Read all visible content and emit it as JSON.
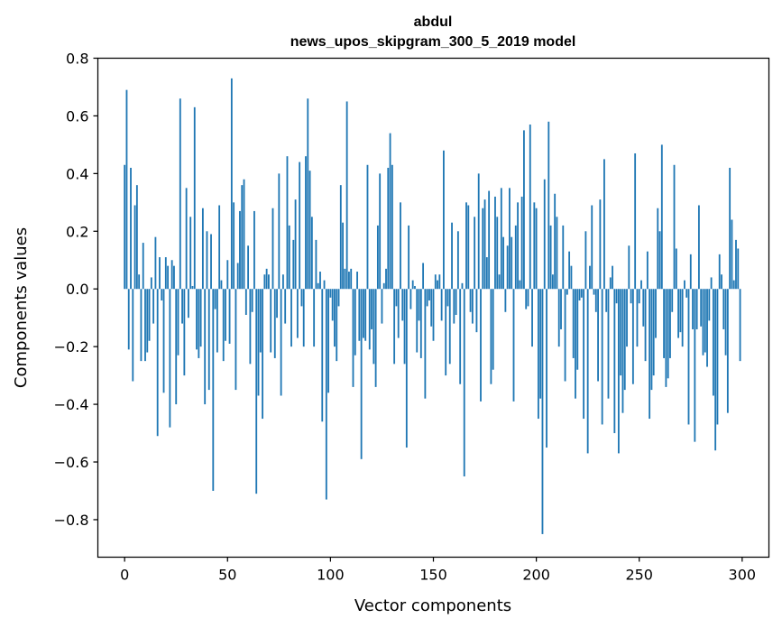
{
  "chart_data": {
    "type": "bar",
    "title_line1": "abdul",
    "title_line2": "news_upos_skipgram_300_5_2019 model",
    "xlabel": "Vector components",
    "ylabel": "Components values",
    "xlim": [
      -13,
      313
    ],
    "ylim": [
      -0.93,
      0.8
    ],
    "xticks": [
      0,
      50,
      100,
      150,
      200,
      250,
      300
    ],
    "xtick_labels": [
      "0",
      "50",
      "100",
      "150",
      "200",
      "250",
      "300"
    ],
    "yticks": [
      -0.8,
      -0.6,
      -0.4,
      -0.2,
      0.0,
      0.2,
      0.4,
      0.6,
      0.8
    ],
    "ytick_labels": [
      "−0.8",
      "−0.6",
      "−0.4",
      "−0.2",
      "0.0",
      "0.2",
      "0.4",
      "0.6",
      "0.8"
    ],
    "bar_color": "#1f77b4",
    "grid": false,
    "values": [
      0.43,
      0.69,
      -0.21,
      0.42,
      -0.32,
      0.29,
      0.36,
      0.05,
      -0.25,
      0.16,
      -0.25,
      -0.22,
      -0.18,
      0.04,
      -0.12,
      0.18,
      -0.51,
      0.11,
      -0.04,
      -0.36,
      0.11,
      0.08,
      -0.48,
      0.1,
      0.08,
      -0.4,
      -0.23,
      0.66,
      -0.12,
      -0.3,
      0.35,
      -0.1,
      0.25,
      0.01,
      0.63,
      -0.21,
      -0.24,
      -0.2,
      0.28,
      -0.4,
      0.2,
      -0.35,
      0.19,
      -0.7,
      -0.07,
      -0.22,
      0.29,
      0.03,
      -0.25,
      -0.18,
      0.1,
      -0.19,
      0.73,
      0.3,
      -0.35,
      0.09,
      0.27,
      0.36,
      0.38,
      -0.09,
      0.15,
      -0.26,
      -0.08,
      0.27,
      -0.71,
      -0.37,
      -0.22,
      -0.45,
      0.05,
      0.07,
      0.05,
      -0.22,
      0.28,
      -0.24,
      -0.1,
      0.4,
      -0.37,
      0.05,
      -0.12,
      0.46,
      0.22,
      -0.2,
      0.17,
      0.31,
      -0.17,
      0.44,
      -0.06,
      -0.2,
      0.46,
      0.66,
      0.41,
      0.25,
      -0.2,
      0.17,
      0.02,
      0.06,
      -0.46,
      0.03,
      -0.73,
      -0.36,
      -0.03,
      -0.11,
      -0.2,
      -0.25,
      -0.06,
      0.36,
      0.23,
      0.07,
      0.65,
      0.06,
      0.07,
      -0.34,
      -0.23,
      0.06,
      -0.18,
      -0.59,
      -0.17,
      -0.18,
      0.43,
      -0.21,
      -0.14,
      -0.26,
      -0.34,
      0.22,
      0.4,
      -0.12,
      0.02,
      0.07,
      0.42,
      0.54,
      0.43,
      -0.26,
      -0.06,
      -0.17,
      0.3,
      -0.11,
      -0.26,
      -0.55,
      0.22,
      -0.07,
      0.03,
      0.01,
      -0.22,
      -0.11,
      -0.24,
      0.09,
      -0.38,
      -0.06,
      -0.04,
      -0.13,
      -0.18,
      0.05,
      0.03,
      0.05,
      -0.11,
      0.48,
      -0.3,
      -0.06,
      -0.26,
      0.23,
      -0.12,
      -0.09,
      0.2,
      -0.33,
      0.02,
      -0.65,
      0.3,
      0.29,
      -0.08,
      -0.12,
      0.25,
      -0.15,
      0.4,
      -0.39,
      0.28,
      0.31,
      0.11,
      0.34,
      -0.33,
      -0.28,
      0.32,
      0.25,
      0.05,
      0.35,
      0.18,
      -0.08,
      0.15,
      0.35,
      0.18,
      -0.39,
      0.22,
      0.3,
      0.03,
      0.32,
      0.55,
      -0.07,
      -0.06,
      0.57,
      -0.2,
      0.3,
      0.28,
      -0.45,
      -0.38,
      -0.85,
      0.38,
      -0.55,
      0.58,
      0.22,
      0.05,
      0.33,
      0.25,
      -0.2,
      -0.14,
      0.22,
      -0.32,
      -0.02,
      0.13,
      0.08,
      -0.24,
      -0.38,
      -0.28,
      -0.04,
      -0.03,
      -0.45,
      0.2,
      -0.57,
      0.08,
      0.29,
      -0.02,
      -0.08,
      -0.32,
      0.31,
      -0.47,
      0.45,
      -0.08,
      -0.38,
      0.04,
      0.08,
      -0.5,
      -0.05,
      -0.57,
      -0.3,
      -0.43,
      -0.35,
      -0.2,
      0.15,
      -0.05,
      -0.33,
      0.47,
      -0.2,
      -0.05,
      0.03,
      -0.13,
      -0.25,
      0.13,
      -0.45,
      -0.35,
      -0.3,
      -0.17,
      0.28,
      0.2,
      0.5,
      -0.24,
      -0.34,
      -0.31,
      -0.24,
      -0.08,
      0.43,
      0.14,
      -0.17,
      -0.15,
      -0.2,
      0.03,
      -0.03,
      -0.47,
      0.12,
      -0.14,
      -0.53,
      -0.14,
      0.29,
      -0.13,
      -0.23,
      -0.22,
      -0.27,
      -0.11,
      0.04,
      -0.37,
      -0.56,
      -0.47,
      0.12,
      0.05,
      -0.14,
      -0.23,
      -0.43,
      0.42,
      0.24,
      0.03,
      0.17,
      0.14,
      -0.25
    ]
  }
}
